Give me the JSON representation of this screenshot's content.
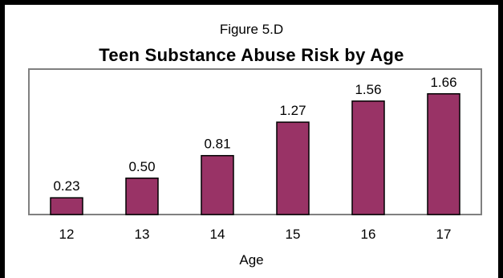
{
  "figure_label": "Figure 5.D",
  "chart_data": {
    "type": "bar",
    "title": "Teen Substance Abuse Risk by Age",
    "xlabel": "Age",
    "ylabel": "",
    "categories": [
      "12",
      "13",
      "14",
      "15",
      "16",
      "17"
    ],
    "values": [
      0.23,
      0.5,
      0.81,
      1.27,
      1.56,
      1.66
    ],
    "value_labels": [
      "0.23",
      "0.50",
      "0.81",
      "1.27",
      "1.56",
      "1.66"
    ],
    "ylim": [
      0,
      2
    ],
    "grid": false,
    "legend": "none",
    "bar_color": "#993366",
    "bar_edge_color": "#000000",
    "plot_border_color": "#808080"
  }
}
